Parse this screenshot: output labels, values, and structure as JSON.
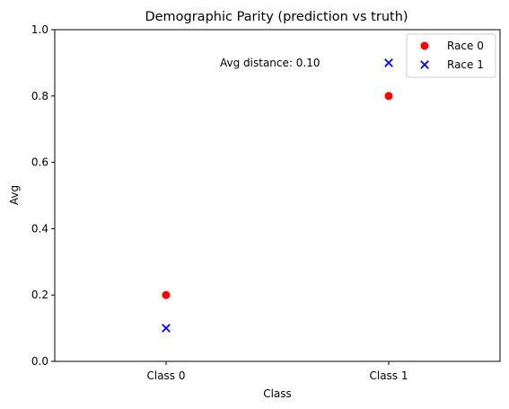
{
  "chart_data": {
    "type": "scatter",
    "title": "Demographic Parity (prediction vs truth)",
    "xlabel": "Class",
    "ylabel": "Avg",
    "categories": [
      "Class 0",
      "Class 1"
    ],
    "ylim": [
      0,
      1.0
    ],
    "yticks": [
      "0.0",
      "0.2",
      "0.4",
      "0.6",
      "0.8",
      "1.0"
    ],
    "grid": false,
    "legend_position": "top-right",
    "series": [
      {
        "name": "Race 0",
        "marker": "circle",
        "color": "#ff0000",
        "values": [
          0.2,
          0.8
        ]
      },
      {
        "name": "Race 1",
        "marker": "x",
        "color": "#0000ff",
        "values": [
          0.1,
          0.9
        ]
      }
    ],
    "annotation": "Avg distance: 0.10"
  }
}
